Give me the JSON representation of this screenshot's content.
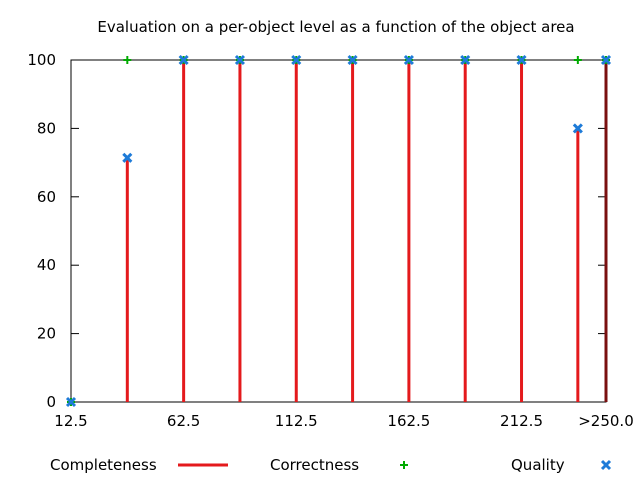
{
  "chart_data": {
    "type": "line",
    "title": "Evaluation on a per-object level as a function of the object area",
    "xlabel": "",
    "ylabel": "",
    "x": [
      12.5,
      37.5,
      62.5,
      87.5,
      112.5,
      137.5,
      162.5,
      187.5,
      212.5,
      237.5,
      250
    ],
    "x_ticks": [
      "12.5",
      "62.5",
      "112.5",
      "162.5",
      "212.5",
      ">250.0"
    ],
    "x_tick_values": [
      12.5,
      62.5,
      112.5,
      162.5,
      212.5,
      250
    ],
    "xlim": [
      12.5,
      250
    ],
    "ylim": [
      0,
      100
    ],
    "y_ticks": [
      0,
      20,
      40,
      60,
      80,
      100
    ],
    "grid": false,
    "legend_placement": "bottom",
    "series": [
      {
        "name": "Completeness",
        "style": "impulses",
        "color": "#e41a1c",
        "values": [
          0,
          71.4,
          100,
          100,
          100,
          100,
          100,
          100,
          100,
          80,
          100
        ]
      },
      {
        "name": "Correctness",
        "style": "points-plus",
        "color": "#00aa00",
        "values": [
          0,
          100,
          100,
          100,
          100,
          100,
          100,
          100,
          100,
          100,
          100
        ]
      },
      {
        "name": "Quality",
        "style": "points-cross",
        "color": "#1e7bd8",
        "values": [
          0,
          71.4,
          100,
          100,
          100,
          100,
          100,
          100,
          100,
          80,
          100
        ]
      }
    ]
  }
}
